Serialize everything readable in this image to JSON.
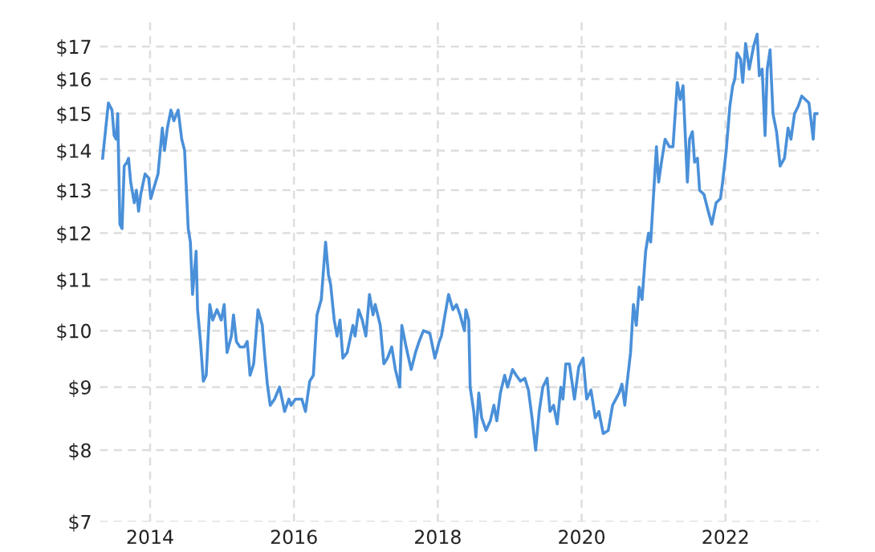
{
  "chart_data": {
    "type": "line",
    "log": true,
    "grid": true,
    "marker": "none",
    "line_style": "solid",
    "xlim": [
      2013.3,
      2023.3
    ],
    "xticks": [
      2014,
      2016,
      2018,
      2020,
      2022
    ],
    "ylim": [
      7,
      18
    ],
    "yticks": [
      {
        "value": 7,
        "label": "$7"
      },
      {
        "value": 8,
        "label": "$8"
      },
      {
        "value": 9,
        "label": "$9"
      },
      {
        "value": 10,
        "label": "$10"
      },
      {
        "value": 11,
        "label": "$11"
      },
      {
        "value": 12,
        "label": "$12"
      },
      {
        "value": 13,
        "label": "$13"
      },
      {
        "value": 14,
        "label": "$14"
      },
      {
        "value": 15,
        "label": "$15"
      },
      {
        "value": 16,
        "label": "$16"
      },
      {
        "value": 17,
        "label": "$17"
      }
    ],
    "series": [
      {
        "color": "#4a90d9",
        "x": [
          2013.34,
          2013.42,
          2013.47,
          2013.5,
          2013.53,
          2013.55,
          2013.58,
          2013.61,
          2013.64,
          2013.68,
          2013.7,
          2013.73,
          2013.78,
          2013.81,
          2013.84,
          2013.87,
          2013.93,
          2013.98,
          2014.01,
          2014.06,
          2014.11,
          2014.17,
          2014.2,
          2014.24,
          2014.29,
          2014.33,
          2014.39,
          2014.44,
          2014.48,
          2014.53,
          2014.56,
          2014.59,
          2014.64,
          2014.66,
          2014.7,
          2014.74,
          2014.78,
          2014.83,
          2014.87,
          2014.93,
          2014.99,
          2015.03,
          2015.07,
          2015.13,
          2015.16,
          2015.2,
          2015.25,
          2015.31,
          2015.35,
          2015.39,
          2015.44,
          2015.5,
          2015.56,
          2015.59,
          2015.63,
          2015.67,
          2015.73,
          2015.8,
          2015.87,
          2015.93,
          2015.96,
          2016.02,
          2016.11,
          2016.16,
          2016.22,
          2016.27,
          2016.32,
          2016.38,
          2016.44,
          2016.48,
          2016.51,
          2016.56,
          2016.6,
          2016.64,
          2016.68,
          2016.74,
          2016.82,
          2016.85,
          2016.9,
          2016.95,
          2017.0,
          2017.05,
          2017.1,
          2017.13,
          2017.2,
          2017.25,
          2017.3,
          2017.36,
          2017.41,
          2017.47,
          2017.5,
          2017.56,
          2017.63,
          2017.69,
          2017.74,
          2017.8,
          2017.89,
          2017.96,
          2018.02,
          2018.05,
          2018.1,
          2018.15,
          2018.21,
          2018.26,
          2018.31,
          2018.37,
          2018.39,
          2018.43,
          2018.45,
          2018.5,
          2018.53,
          2018.57,
          2018.61,
          2018.67,
          2018.73,
          2018.78,
          2018.82,
          2018.87,
          2018.93,
          2018.97,
          2019.04,
          2019.09,
          2019.15,
          2019.21,
          2019.26,
          2019.31,
          2019.36,
          2019.41,
          2019.46,
          2019.52,
          2019.56,
          2019.61,
          2019.66,
          2019.71,
          2019.74,
          2019.78,
          2019.83,
          2019.9,
          2019.96,
          2020.02,
          2020.07,
          2020.13,
          2020.19,
          2020.24,
          2020.3,
          2020.37,
          2020.43,
          2020.52,
          2020.56,
          2020.6,
          2020.63,
          2020.68,
          2020.72,
          2020.76,
          2020.8,
          2020.84,
          2020.89,
          2020.93,
          2020.96,
          2021.04,
          2021.07,
          2021.11,
          2021.16,
          2021.22,
          2021.27,
          2021.33,
          2021.37,
          2021.41,
          2021.47,
          2021.5,
          2021.54,
          2021.57,
          2021.61,
          2021.64,
          2021.7,
          2021.76,
          2021.81,
          2021.87,
          2021.93,
          2021.96,
          2022.01,
          2022.06,
          2022.1,
          2022.13,
          2022.16,
          2022.21,
          2022.24,
          2022.28,
          2022.33,
          2022.39,
          2022.44,
          2022.47,
          2022.51,
          2022.55,
          2022.58,
          2022.62,
          2022.66,
          2022.71,
          2022.76,
          2022.82,
          2022.87,
          2022.91,
          2022.96,
          2023.01,
          2023.06,
          2023.11,
          2023.16,
          2023.22,
          2023.24,
          2023.27
        ],
        "values": [
          13.8,
          15.3,
          15.1,
          14.4,
          14.3,
          15.0,
          12.2,
          12.1,
          13.6,
          13.7,
          13.8,
          13.2,
          12.7,
          13.0,
          12.5,
          12.9,
          13.4,
          13.3,
          12.8,
          13.1,
          13.4,
          14.6,
          14.0,
          14.6,
          15.1,
          14.8,
          15.1,
          14.3,
          14.0,
          12.1,
          11.8,
          10.7,
          11.6,
          10.4,
          9.8,
          9.1,
          9.2,
          10.5,
          10.2,
          10.4,
          10.2,
          10.5,
          9.6,
          9.9,
          10.3,
          9.8,
          9.7,
          9.7,
          9.8,
          9.2,
          9.4,
          10.4,
          10.1,
          9.6,
          9.05,
          8.7,
          8.8,
          9.0,
          8.6,
          8.8,
          8.7,
          8.8,
          8.8,
          8.6,
          9.1,
          9.2,
          10.3,
          10.6,
          11.8,
          11.1,
          10.9,
          10.2,
          9.9,
          10.2,
          9.5,
          9.6,
          10.1,
          9.9,
          10.4,
          10.2,
          9.9,
          10.7,
          10.3,
          10.5,
          10.1,
          9.4,
          9.5,
          9.7,
          9.3,
          9.0,
          10.1,
          9.7,
          9.3,
          9.6,
          9.8,
          10.0,
          9.95,
          9.5,
          9.8,
          9.9,
          10.3,
          10.7,
          10.4,
          10.5,
          10.3,
          10.0,
          10.4,
          10.2,
          9.0,
          8.6,
          8.2,
          8.9,
          8.5,
          8.3,
          8.45,
          8.7,
          8.45,
          8.9,
          9.2,
          9.0,
          9.3,
          9.2,
          9.1,
          9.15,
          8.95,
          8.5,
          8.0,
          8.6,
          9.0,
          9.15,
          8.6,
          8.7,
          8.4,
          9.0,
          8.8,
          9.4,
          9.4,
          8.8,
          9.35,
          9.5,
          8.8,
          8.95,
          8.5,
          8.6,
          8.25,
          8.3,
          8.7,
          8.9,
          9.05,
          8.7,
          9.05,
          9.6,
          10.5,
          10.1,
          10.85,
          10.6,
          11.6,
          12.0,
          11.8,
          14.1,
          13.2,
          13.7,
          14.3,
          14.1,
          14.1,
          15.9,
          15.4,
          15.8,
          13.2,
          14.3,
          14.5,
          13.7,
          13.8,
          13.0,
          12.9,
          12.5,
          12.2,
          12.7,
          12.8,
          13.2,
          14.0,
          15.2,
          15.8,
          16.0,
          16.8,
          16.6,
          15.9,
          17.1,
          16.3,
          17.0,
          17.4,
          16.1,
          16.3,
          14.4,
          16.3,
          16.9,
          15.0,
          14.5,
          13.6,
          13.8,
          14.6,
          14.3,
          15.0,
          15.2,
          15.5,
          15.4,
          15.3,
          14.3,
          15.0,
          15.0
        ]
      }
    ]
  }
}
